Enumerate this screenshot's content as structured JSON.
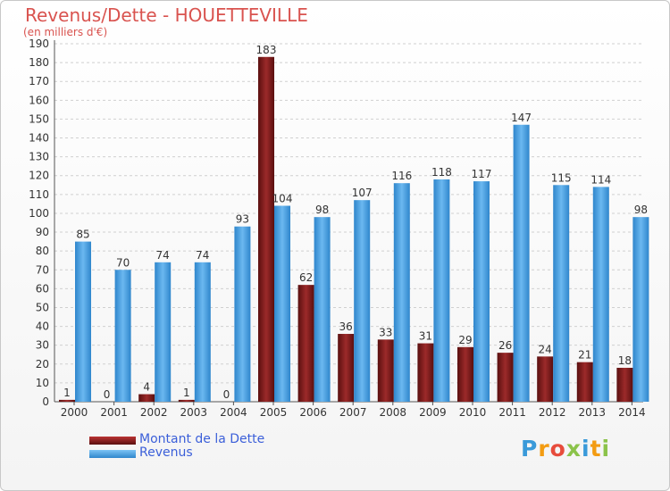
{
  "title": "Revenus/Dette - HOUETTEVILLE",
  "subtitle": "(en milliers d'€)",
  "colors": {
    "debt": "#7b1a1a",
    "revenue": "#4aa3e6",
    "title": "#d9534f",
    "legend_text": "#3b5fd9"
  },
  "chart_data": {
    "type": "bar",
    "title": "Revenus/Dette - HOUETTEVILLE",
    "ylabel": "(en milliers d'€)",
    "xlabel": "",
    "ylim": [
      0,
      190
    ],
    "yticks": [
      0,
      10,
      20,
      30,
      40,
      50,
      60,
      70,
      80,
      90,
      100,
      110,
      120,
      130,
      140,
      150,
      160,
      170,
      180,
      190
    ],
    "categories": [
      "2000",
      "2001",
      "2002",
      "2003",
      "2004",
      "2005",
      "2006",
      "2007",
      "2008",
      "2009",
      "2010",
      "2011",
      "2012",
      "2013",
      "2014"
    ],
    "series": [
      {
        "name": "Montant de la Dette",
        "color": "#7b1a1a",
        "values": [
          1,
          0,
          4,
          1,
          0,
          183,
          62,
          36,
          33,
          31,
          29,
          26,
          24,
          21,
          18
        ]
      },
      {
        "name": "Revenus",
        "color": "#4aa3e6",
        "values": [
          85,
          70,
          74,
          74,
          93,
          104,
          98,
          107,
          116,
          118,
          117,
          147,
          115,
          114,
          98
        ]
      }
    ],
    "legend": "bottom-left"
  },
  "legend": {
    "debt_label": "Montant de la Dette",
    "revenue_label": "Revenus"
  },
  "logo": {
    "letters": [
      "P",
      "r",
      "o",
      "x",
      "i",
      "t",
      "i"
    ],
    "colors": [
      "#3a9ad9",
      "#f39c12",
      "#e74c3c",
      "#8bc34a",
      "#3a9ad9",
      "#f39c12",
      "#8bc34a"
    ]
  }
}
